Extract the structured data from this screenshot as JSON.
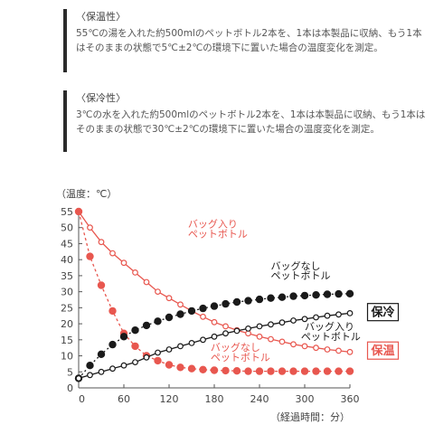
{
  "sections": [
    {
      "title": "〈保温性〉",
      "body": "55℃の湯を入れた約500mlのペットボトル2本を、1本は本製品に収納、もう1本はそのままの状態で5℃±2℃の環境下に置いた場合の温度変化を測定。"
    },
    {
      "title": "〈保冷性〉",
      "body": "3℃の水を入れた約500mlのペットボトル2本を、1本は本製品に収納、もう1本はそのままの状態で30℃±2℃の環境下に置いた場合の温度変化を測定。"
    }
  ],
  "colors": {
    "red": "#e8574f",
    "black": "#1a1a1a"
  },
  "chart_data": {
    "type": "line",
    "ylabel": "（温度：℃）",
    "xlabel": "（経過時間：分）",
    "xlim": [
      0,
      360
    ],
    "ylim": [
      0,
      55
    ],
    "xticks": [
      0,
      60,
      120,
      180,
      240,
      300,
      360
    ],
    "yticks": [
      0,
      5,
      10,
      15,
      20,
      25,
      30,
      35,
      40,
      45,
      50,
      55
    ],
    "series": [
      {
        "name": "バッグ入りペットボトル",
        "group": "保温",
        "color": "#e8574f",
        "style": "solid-open",
        "x": [
          0,
          15,
          30,
          45,
          60,
          75,
          90,
          105,
          120,
          135,
          150,
          165,
          180,
          195,
          210,
          225,
          240,
          255,
          270,
          285,
          300,
          315,
          330,
          345,
          360
        ],
        "values": [
          55,
          50,
          45.5,
          42,
          39,
          36,
          33,
          30,
          28,
          26,
          24,
          22.2,
          20.5,
          19.2,
          18,
          17,
          16,
          15.2,
          14.4,
          13.6,
          13,
          12.5,
          12,
          11.6,
          11.2
        ]
      },
      {
        "name": "バッグなしペットボトル",
        "group": "保温",
        "color": "#e8574f",
        "style": "dashed-filled",
        "x": [
          0,
          15,
          30,
          45,
          60,
          75,
          90,
          105,
          120,
          135,
          150,
          165,
          180,
          195,
          210,
          225,
          240,
          255,
          270,
          285,
          300,
          315,
          330,
          345,
          360
        ],
        "values": [
          55,
          41,
          32,
          24,
          17,
          13,
          10,
          8.5,
          7.2,
          6.4,
          6,
          5.7,
          5.5,
          5.4,
          5.3,
          5.2,
          5.2,
          5.2,
          5.2,
          5.2,
          5.2,
          5.2,
          5.2,
          5.2,
          5.2
        ]
      },
      {
        "name": "バッグなしペットボトル",
        "group": "保冷",
        "color": "#1a1a1a",
        "style": "dotted-filled",
        "x": [
          0,
          15,
          30,
          45,
          60,
          75,
          90,
          105,
          120,
          135,
          150,
          165,
          180,
          195,
          210,
          225,
          240,
          255,
          270,
          285,
          300,
          315,
          330,
          345,
          360
        ],
        "values": [
          3,
          7,
          10.5,
          13.5,
          16,
          18,
          19.5,
          20.8,
          22,
          23,
          24,
          24.8,
          25.5,
          26.2,
          26.8,
          27.2,
          27.6,
          28,
          28.3,
          28.6,
          28.8,
          29,
          29.2,
          29.3,
          29.4
        ]
      },
      {
        "name": "バッグ入りペットボトル",
        "group": "保冷",
        "color": "#1a1a1a",
        "style": "solid-open",
        "x": [
          0,
          15,
          30,
          45,
          60,
          75,
          90,
          105,
          120,
          135,
          150,
          165,
          180,
          195,
          210,
          225,
          240,
          255,
          270,
          285,
          300,
          315,
          330,
          345,
          360
        ],
        "values": [
          3,
          4,
          5,
          6,
          7,
          8,
          9.5,
          11,
          12,
          13,
          14,
          15,
          16,
          17,
          17.8,
          18.5,
          19.2,
          19.8,
          20.4,
          21,
          21.5,
          22,
          22.5,
          22.9,
          23.3
        ]
      }
    ],
    "annotations": [
      {
        "text": "バッグ入り",
        "x": 145,
        "y": 50
      },
      {
        "text": "ペットボトル",
        "x": 145,
        "y": 47
      },
      {
        "text": "バッグなし",
        "x": 255,
        "y": 37
      },
      {
        "text": "ペットボトル",
        "x": 255,
        "y": 34
      },
      {
        "text": "バッグ入り",
        "x": 300,
        "y": 18
      },
      {
        "text": "ペットボトル",
        "x": 295,
        "y": 15
      },
      {
        "text": "バッグなし",
        "x": 175,
        "y": 11.5
      },
      {
        "text": "ペットボトル",
        "x": 175,
        "y": 8.5
      }
    ],
    "group_labels": [
      {
        "text": "保冷",
        "x": 375,
        "y": 23.5,
        "color": "#1a1a1a"
      },
      {
        "text": "保温",
        "x": 375,
        "y": 11.5,
        "color": "#e8574f"
      }
    ]
  }
}
